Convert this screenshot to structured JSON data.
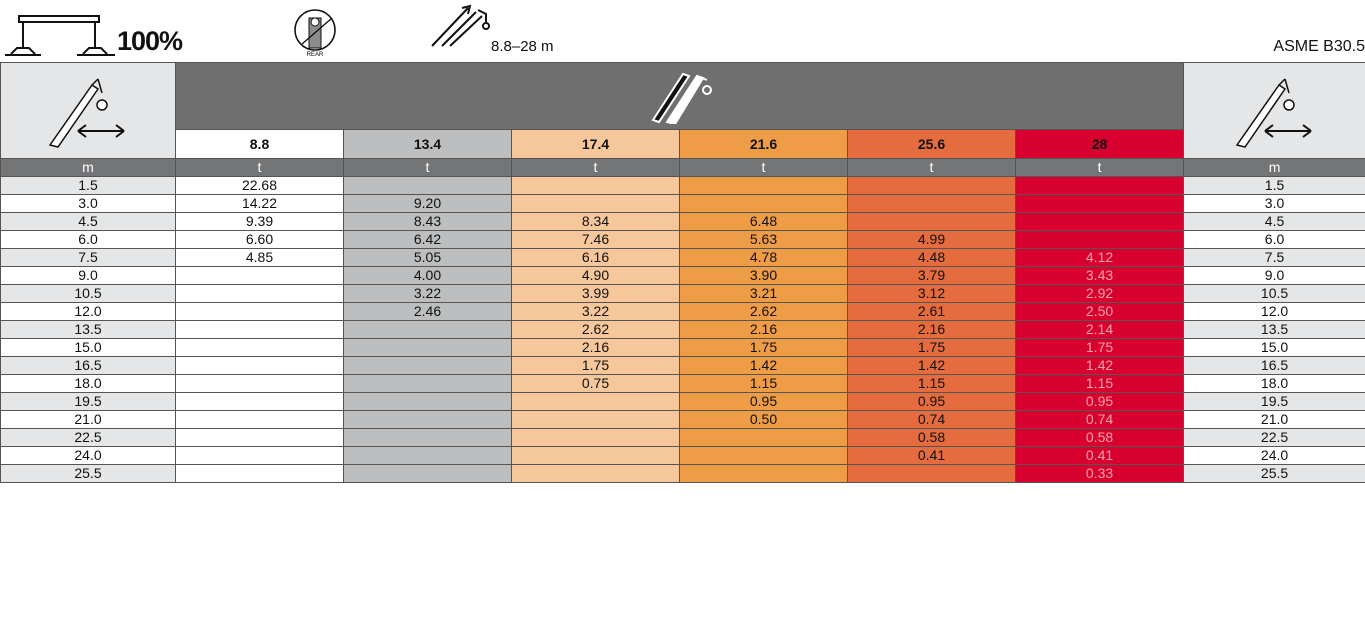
{
  "header": {
    "outrigger_percent": "100%",
    "boom_range": "8.8–28 m",
    "standard": "ASME B30.5"
  },
  "icons": {
    "outrigger": "outrigger-full-extension-icon",
    "rear": "rear-slew-zone-icon",
    "boom": "telescopic-boom-icon",
    "radius": "working-radius-icon"
  },
  "table": {
    "boom_lengths": [
      "8.8",
      "13.4",
      "17.4",
      "21.6",
      "25.6",
      "28"
    ],
    "radius_unit": "m",
    "load_unit": "t",
    "column_colors": [
      "#ffffff",
      "#bcbec0",
      "#f5c79b",
      "#ef9c46",
      "#e46c3e",
      "#d7002f"
    ],
    "rows": [
      {
        "radius": "1.5",
        "loads": [
          "22.68",
          "",
          "",
          "",
          "",
          ""
        ]
      },
      {
        "radius": "3.0",
        "loads": [
          "14.22",
          "9.20",
          "",
          "",
          "",
          ""
        ]
      },
      {
        "radius": "4.5",
        "loads": [
          "9.39",
          "8.43",
          "8.34",
          "6.48",
          "",
          ""
        ]
      },
      {
        "radius": "6.0",
        "loads": [
          "6.60",
          "6.42",
          "7.46",
          "5.63",
          "4.99",
          ""
        ]
      },
      {
        "radius": "7.5",
        "loads": [
          "4.85",
          "5.05",
          "6.16",
          "4.78",
          "4.48",
          "4.12"
        ]
      },
      {
        "radius": "9.0",
        "loads": [
          "",
          "4.00",
          "4.90",
          "3.90",
          "3.79",
          "3.43"
        ]
      },
      {
        "radius": "10.5",
        "loads": [
          "",
          "3.22",
          "3.99",
          "3.21",
          "3.12",
          "2.92"
        ]
      },
      {
        "radius": "12.0",
        "loads": [
          "",
          "2.46",
          "3.22",
          "2.62",
          "2.61",
          "2.50"
        ]
      },
      {
        "radius": "13.5",
        "loads": [
          "",
          "",
          "2.62",
          "2.16",
          "2.16",
          "2.14"
        ]
      },
      {
        "radius": "15.0",
        "loads": [
          "",
          "",
          "2.16",
          "1.75",
          "1.75",
          "1.75"
        ]
      },
      {
        "radius": "16.5",
        "loads": [
          "",
          "",
          "1.75",
          "1.42",
          "1.42",
          "1.42"
        ]
      },
      {
        "radius": "18.0",
        "loads": [
          "",
          "",
          "0.75",
          "1.15",
          "1.15",
          "1.15"
        ]
      },
      {
        "radius": "19.5",
        "loads": [
          "",
          "",
          "",
          "0.95",
          "0.95",
          "0.95"
        ]
      },
      {
        "radius": "21.0",
        "loads": [
          "",
          "",
          "",
          "0.50",
          "0.74",
          "0.74"
        ]
      },
      {
        "radius": "22.5",
        "loads": [
          "",
          "",
          "",
          "",
          "0.58",
          "0.58"
        ]
      },
      {
        "radius": "24.0",
        "loads": [
          "",
          "",
          "",
          "",
          "0.41",
          "0.41"
        ]
      },
      {
        "radius": "25.5",
        "loads": [
          "",
          "",
          "",
          "",
          "",
          "0.33"
        ]
      }
    ]
  }
}
